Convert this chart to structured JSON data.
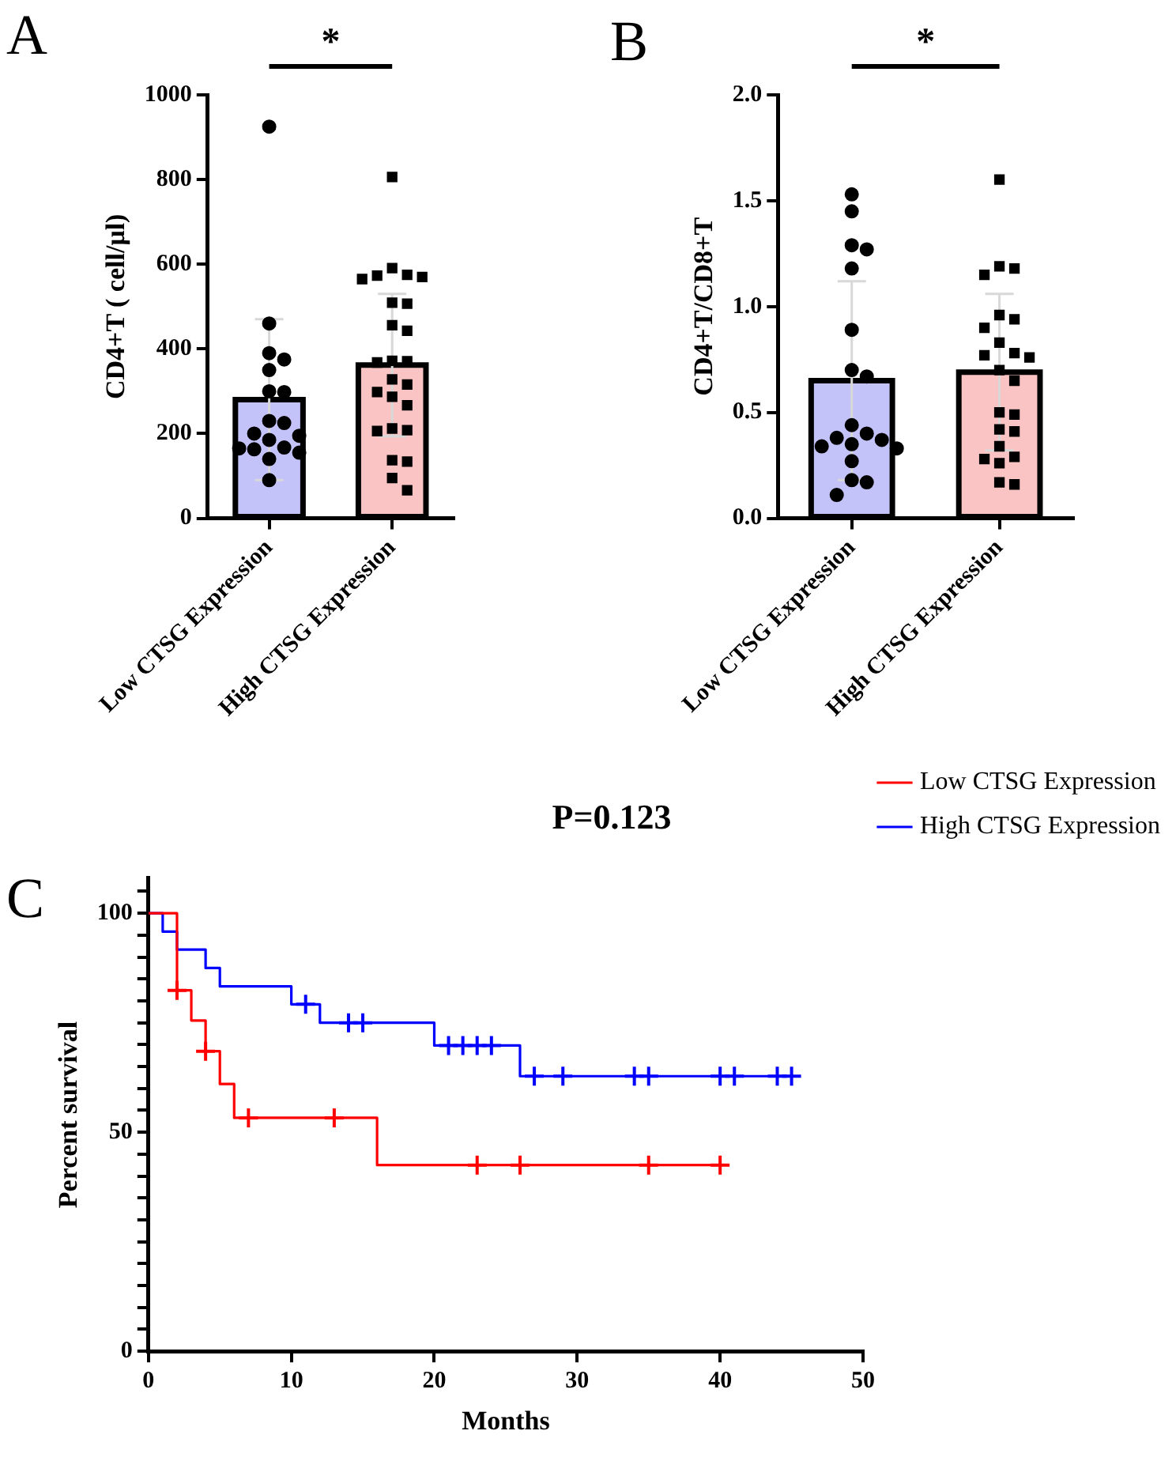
{
  "chart_data": [
    {
      "type": "bar",
      "annotations": [
        "A",
        "*"
      ],
      "ylabel": "CD4+T ( cell/μl)",
      "categories": [
        "Low CTSG Expression",
        "High CTSG Expression"
      ],
      "values": [
        280,
        362
      ],
      "colors": [
        "#c3c3f9",
        "#fbc4c4"
      ],
      "errors": [
        190,
        168
      ],
      "ylim": [
        0,
        1000
      ],
      "yticks": [
        0,
        200,
        400,
        600,
        800,
        1000
      ],
      "grid": false,
      "series": [
        {
          "type": "scatter",
          "marker": "circle",
          "color": "#000000",
          "x": [
            "Low CTSG Expression",
            "Low CTSG Expression",
            "Low CTSG Expression",
            "Low CTSG Expression",
            "Low CTSG Expression",
            "Low CTSG Expression",
            "Low CTSG Expression",
            "Low CTSG Expression",
            "Low CTSG Expression",
            "Low CTSG Expression",
            "Low CTSG Expression",
            "Low CTSG Expression",
            "Low CTSG Expression",
            "Low CTSG Expression",
            "Low CTSG Expression",
            "Low CTSG Expression",
            "Low CTSG Expression",
            "Low CTSG Expression"
          ],
          "values": [
            925,
            460,
            375,
            390,
            350,
            300,
            298,
            230,
            225,
            200,
            195,
            165,
            163,
            167,
            155,
            140,
            90,
            185
          ]
        },
        {
          "type": "scatter",
          "marker": "square",
          "color": "#000000",
          "x": [
            "High CTSG Expression",
            "High CTSG Expression",
            "High CTSG Expression",
            "High CTSG Expression",
            "High CTSG Expression",
            "High CTSG Expression",
            "High CTSG Expression",
            "High CTSG Expression",
            "High CTSG Expression",
            "High CTSG Expression",
            "High CTSG Expression",
            "High CTSG Expression",
            "High CTSG Expression",
            "High CTSG Expression",
            "High CTSG Expression",
            "High CTSG Expression",
            "High CTSG Expression",
            "High CTSG Expression",
            "High CTSG Expression",
            "High CTSG Expression",
            "High CTSG Expression",
            "High CTSG Expression",
            "High CTSG Expression",
            "High CTSG Expression",
            "High CTSG Expression"
          ],
          "values": [
            806,
            565,
            570,
            591,
            573,
            507,
            509,
            456,
            443,
            371,
            368,
            328,
            316,
            298,
            287,
            267,
            206,
            208,
            212,
            134,
            137,
            95,
            66,
            575,
            372
          ]
        }
      ]
    },
    {
      "type": "bar",
      "annotations": [
        "B",
        "*"
      ],
      "ylabel": "CD4+T/CD8+T",
      "categories": [
        "Low CTSG Expression",
        "High CTSG Expression"
      ],
      "values": [
        0.65,
        0.69
      ],
      "colors": [
        "#c3c3f9",
        "#fbc4c4"
      ],
      "errors": [
        0.47,
        0.37
      ],
      "ylim": [
        0,
        2
      ],
      "yticks": [
        {
          "value": 0,
          "label": "0.0"
        },
        {
          "value": 0.5,
          "label": "0.5"
        },
        {
          "value": 1,
          "label": "1.0"
        },
        {
          "value": 1.5,
          "label": "1.5"
        },
        {
          "value": 2,
          "label": "2.0"
        }
      ],
      "grid": false,
      "series": [
        {
          "type": "scatter",
          "marker": "circle",
          "color": "#000000",
          "x": [
            "Low CTSG Expression",
            "Low CTSG Expression",
            "Low CTSG Expression",
            "Low CTSG Expression",
            "Low CTSG Expression",
            "Low CTSG Expression",
            "Low CTSG Expression",
            "Low CTSG Expression",
            "Low CTSG Expression",
            "Low CTSG Expression",
            "Low CTSG Expression",
            "Low CTSG Expression",
            "Low CTSG Expression",
            "Low CTSG Expression",
            "Low CTSG Expression",
            "Low CTSG Expression",
            "Low CTSG Expression",
            "Low CTSG Expression",
            "Low CTSG Expression"
          ],
          "values": [
            1.53,
            1.45,
            1.29,
            1.27,
            1.18,
            0.89,
            0.7,
            0.67,
            0.44,
            0.4,
            0.38,
            0.37,
            0.34,
            0.33,
            0.27,
            0.17,
            0.18,
            0.11,
            0.35
          ]
        },
        {
          "type": "scatter",
          "marker": "square",
          "color": "#000000",
          "x": [
            "High CTSG Expression",
            "High CTSG Expression",
            "High CTSG Expression",
            "High CTSG Expression",
            "High CTSG Expression",
            "High CTSG Expression",
            "High CTSG Expression",
            "High CTSG Expression",
            "High CTSG Expression",
            "High CTSG Expression",
            "High CTSG Expression",
            "High CTSG Expression",
            "High CTSG Expression",
            "High CTSG Expression",
            "High CTSG Expression",
            "High CTSG Expression",
            "High CTSG Expression",
            "High CTSG Expression",
            "High CTSG Expression",
            "High CTSG Expression",
            "High CTSG Expression",
            "High CTSG Expression",
            "High CTSG Expression"
          ],
          "values": [
            1.6,
            1.19,
            1.18,
            1.15,
            0.96,
            0.94,
            0.9,
            0.83,
            0.77,
            0.76,
            0.78,
            0.7,
            0.65,
            0.5,
            0.49,
            0.42,
            0.41,
            0.34,
            0.29,
            0.28,
            0.26,
            0.17,
            0.16
          ]
        }
      ]
    },
    {
      "type": "step",
      "title": "P=0.123",
      "annotations": [
        "C"
      ],
      "xlabel": "Months",
      "ylabel": "Percent survival",
      "xlim": [
        0,
        50
      ],
      "xticks": [
        0,
        10,
        20,
        30,
        40,
        50
      ],
      "ylim": [
        0,
        108
      ],
      "yticks": [
        0,
        {
          "value": 5,
          "label": null
        },
        {
          "value": 10,
          "label": null
        },
        {
          "value": 15,
          "label": null
        },
        {
          "value": 20,
          "label": null
        },
        {
          "value": 25,
          "label": null
        },
        {
          "value": 30,
          "label": null
        },
        {
          "value": 35,
          "label": null
        },
        {
          "value": 40,
          "label": null
        },
        {
          "value": 45,
          "label": null
        },
        50,
        {
          "value": 55,
          "label": null
        },
        {
          "value": 60,
          "label": null
        },
        {
          "value": 65,
          "label": null
        },
        {
          "value": 70,
          "label": null
        },
        {
          "value": 75,
          "label": null
        },
        {
          "value": 80,
          "label": null
        },
        {
          "value": 85,
          "label": null
        },
        {
          "value": 90,
          "label": null
        },
        {
          "value": 95,
          "label": null
        },
        100,
        {
          "value": 105,
          "label": null
        }
      ],
      "grid": false,
      "legend": "top right",
      "series": [
        {
          "name": "Low CTSG Expression",
          "color": "#ff0000",
          "x": [
            0,
            2,
            3,
            4,
            5,
            6,
            16,
            40
          ],
          "values": [
            100,
            82.4,
            75.5,
            68.5,
            61,
            53.3,
            42.5,
            42.5
          ]
        },
        {
          "name": "High CTSG Expression",
          "color": "#0000ff",
          "x": [
            0,
            1,
            2,
            4,
            5,
            10,
            12,
            20,
            26,
            45
          ],
          "values": [
            100,
            95.8,
            91.7,
            87.5,
            83.3,
            79.2,
            75,
            69.8,
            62.8,
            62.8
          ]
        },
        {
          "type": "scatter",
          "marker": "cross",
          "color": "#ff0000",
          "x": [
            2,
            4,
            7,
            13,
            23,
            26,
            35,
            40
          ],
          "values": [
            82.4,
            68.5,
            53.3,
            53.3,
            42.5,
            42.5,
            42.5,
            42.5
          ]
        },
        {
          "type": "scatter",
          "marker": "cross",
          "color": "#0000ff",
          "x": [
            11,
            14,
            15,
            21,
            22,
            23,
            24,
            27,
            29,
            34,
            35,
            40,
            41,
            44,
            45
          ],
          "values": [
            79.2,
            75,
            75,
            69.8,
            69.8,
            69.8,
            69.8,
            62.8,
            62.8,
            62.8,
            62.8,
            62.8,
            62.8,
            62.8,
            62.8
          ]
        }
      ]
    }
  ]
}
